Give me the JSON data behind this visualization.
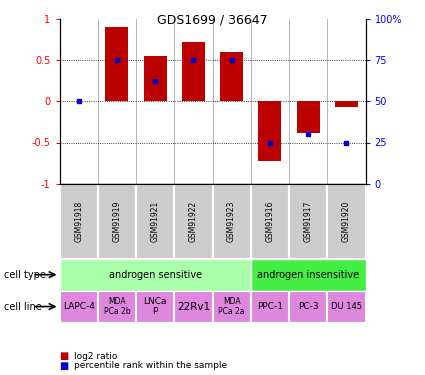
{
  "title": "GDS1699 / 36647",
  "samples": [
    "GSM91918",
    "GSM91919",
    "GSM91921",
    "GSM91922",
    "GSM91923",
    "GSM91916",
    "GSM91917",
    "GSM91920"
  ],
  "log2_ratio": [
    0.0,
    0.9,
    0.55,
    0.72,
    0.6,
    -0.73,
    -0.38,
    -0.07
  ],
  "percentile_rank_raw": [
    50,
    75,
    62,
    75,
    75,
    25,
    30,
    25
  ],
  "cell_line_labels": [
    "LAPC-4",
    "MDA\nPCa 2b",
    "LNCa\nP",
    "22Rv1",
    "MDA\nPCa 2a",
    "PPC-1",
    "PC-3",
    "DU 145"
  ],
  "cell_line_fontsize": [
    6.5,
    5.5,
    6.5,
    7.5,
    5.5,
    6.5,
    6.5,
    6.0
  ],
  "cell_line_color": "#DD88DD",
  "cell_type_sensitive_color": "#AAFFAA",
  "cell_type_insensitive_color": "#44EE44",
  "sample_bg_color": "#CCCCCC",
  "bar_color_red": "#BB0000",
  "bar_color_blue": "#0000CC",
  "ylim_min": -1,
  "ylim_max": 1,
  "legend_red": "log2 ratio",
  "legend_blue": "percentile rank within the sample"
}
